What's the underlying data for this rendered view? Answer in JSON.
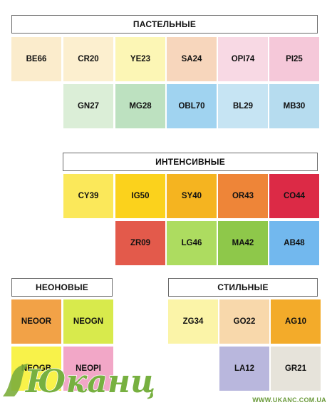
{
  "sections": {
    "pastel": {
      "title": "ПАСТЕЛЬНЫЕ"
    },
    "intense": {
      "title": "ИНТЕНСИВНЫЕ"
    },
    "neon": {
      "title": "НЕОНОВЫЕ"
    },
    "stylish": {
      "title": "СТИЛЬНЫЕ"
    }
  },
  "swatches": {
    "pastel": [
      {
        "code": "BE66",
        "color": "#fbeccc"
      },
      {
        "code": "CR20",
        "color": "#fcefcf"
      },
      {
        "code": "YE23",
        "color": "#fcf6b5"
      },
      {
        "code": "SA24",
        "color": "#f7d6bc"
      },
      {
        "code": "OPI74",
        "color": "#f8d9e4"
      },
      {
        "code": "PI25",
        "color": "#f5c8d9"
      },
      {
        "code": "GN27",
        "color": "#dbeed7"
      },
      {
        "code": "MG28",
        "color": "#bde1c0"
      },
      {
        "code": "OBL70",
        "color": "#a0d3f0"
      },
      {
        "code": "BL29",
        "color": "#c6e4f3"
      },
      {
        "code": "MB30",
        "color": "#b6dcef"
      }
    ],
    "intense": [
      {
        "code": "CY39",
        "color": "#fbe85a"
      },
      {
        "code": "IG50",
        "color": "#fbd21c"
      },
      {
        "code": "SY40",
        "color": "#f5b420"
      },
      {
        "code": "OR43",
        "color": "#ee8538"
      },
      {
        "code": "CO44",
        "color": "#dc2a46"
      },
      {
        "code": "ZR09",
        "color": "#e35a4b"
      },
      {
        "code": "LG46",
        "color": "#addc60"
      },
      {
        "code": "MA42",
        "color": "#8ec84a"
      },
      {
        "code": "AB48",
        "color": "#72b8ee"
      }
    ],
    "neon": [
      {
        "code": "NEOOR",
        "color": "#f2a247"
      },
      {
        "code": "NEOGN",
        "color": "#d8ea4c"
      },
      {
        "code": "NEOGB",
        "color": "#f8f24a"
      },
      {
        "code": "NEOPI",
        "color": "#f2a7c7"
      }
    ],
    "stylish": [
      {
        "code": "ZG34",
        "color": "#fbf4a8"
      },
      {
        "code": "GO22",
        "color": "#f8d8ab"
      },
      {
        "code": "AG10",
        "color": "#f3ab2a"
      },
      {
        "code": "LA12",
        "color": "#b9b7dd"
      },
      {
        "code": "GR21",
        "color": "#e6e3da"
      }
    ]
  },
  "watermark": {
    "logo_text": "Юканц",
    "url": "WWW.UKANC.COM.UA"
  }
}
